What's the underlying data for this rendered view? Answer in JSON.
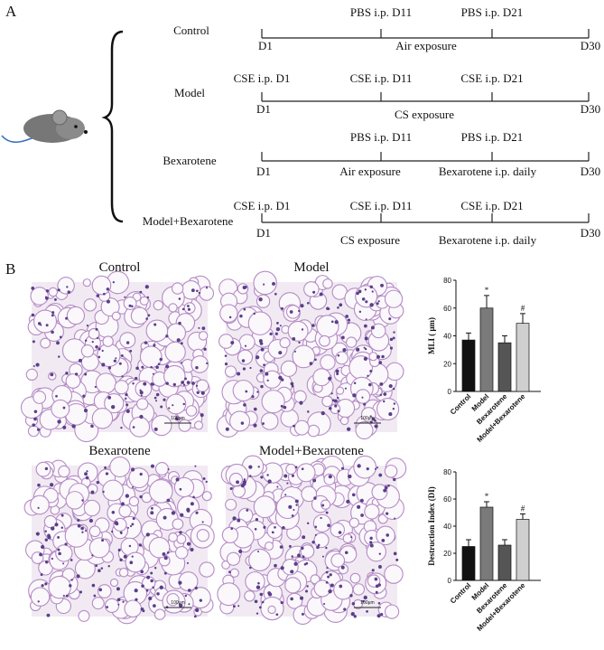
{
  "panel_a": {
    "label": "A",
    "rows": [
      {
        "name": "Control",
        "dose_d11": "PBS i.p. D11",
        "dose_d21": "PBS i.p. D21",
        "start": "D1",
        "end": "D30",
        "exposure": "Air exposure"
      },
      {
        "name": "Model",
        "dose_d1": "CSE i.p. D1",
        "dose_d11": "CSE i.p. D11",
        "dose_d21": "CSE i.p. D21",
        "start": "D1",
        "end": "D30",
        "exposure": "CS exposure"
      },
      {
        "name": "Bexarotene",
        "dose_d11": "PBS i.p. D11",
        "dose_d21": "PBS i.p. D21",
        "start": "D1",
        "end": "D30",
        "exposure": "Air exposure",
        "treatment": "Bexarotene i.p. daily"
      },
      {
        "name": "Model+Bexarotene",
        "dose_d1": "CSE i.p. D1",
        "dose_d11": "CSE i.p. D11",
        "dose_d21": "CSE i.p. D21",
        "start": "D1",
        "end": "D30",
        "exposure": "CS exposure",
        "treatment": "Bexarotene i.p. daily"
      }
    ]
  },
  "panel_b": {
    "label": "B",
    "images": [
      {
        "title": "Control",
        "scale_bar": "100μm"
      },
      {
        "title": "Model",
        "scale_bar": "100μm"
      },
      {
        "title": "Bexarotene",
        "scale_bar": "100μm"
      },
      {
        "title": "Model+Bexarotene",
        "scale_bar": "100μm"
      }
    ]
  },
  "chart_data": [
    {
      "type": "bar",
      "y_label": "MLI ( μm)",
      "categories": [
        "Control",
        "Model",
        "Bexarotene",
        "Model+Bexarotene"
      ],
      "values": [
        37,
        60,
        35,
        49
      ],
      "errors": [
        5,
        9,
        5,
        7
      ],
      "markers": [
        null,
        "*",
        null,
        "#"
      ],
      "colors": [
        "#111111",
        "#7a7a7a",
        "#555555",
        "#cfcfcf"
      ],
      "ylim": [
        0,
        80
      ],
      "yticks": [
        0,
        20,
        40,
        60,
        80
      ]
    },
    {
      "type": "bar",
      "y_label": "Destruction Index (DI)",
      "categories": [
        "Control",
        "Model",
        "Bexarotene",
        "Model+Bexarotene"
      ],
      "values": [
        25,
        54,
        26,
        45
      ],
      "errors": [
        5,
        4,
        4,
        4
      ],
      "markers": [
        null,
        "*",
        null,
        "#"
      ],
      "colors": [
        "#111111",
        "#7a7a7a",
        "#555555",
        "#cfcfcf"
      ],
      "ylim": [
        0,
        80
      ],
      "yticks": [
        0,
        20,
        40,
        60,
        80
      ]
    }
  ]
}
